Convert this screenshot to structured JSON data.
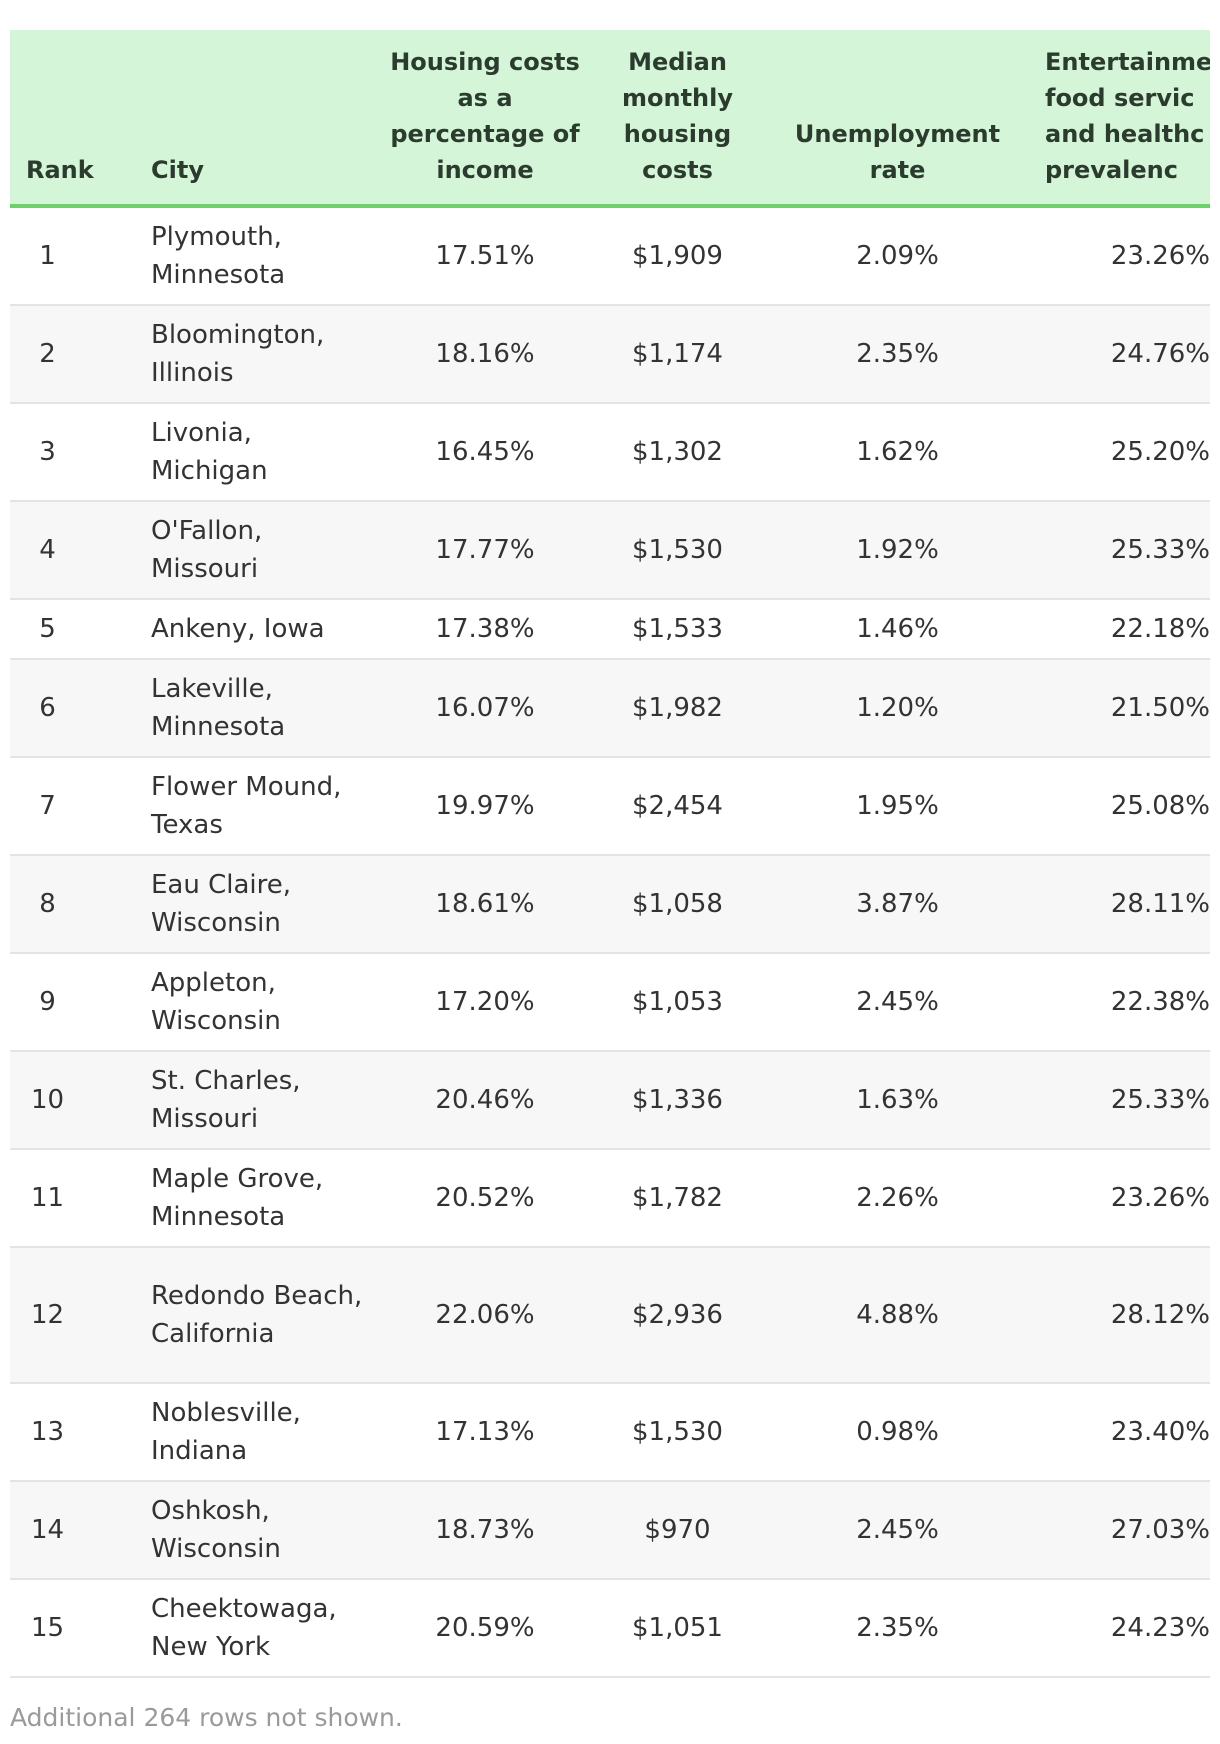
{
  "table": {
    "headers": {
      "rank": "Rank",
      "city": "City",
      "housing_pct": "Housing costs as a percentage of income",
      "median_cost": "Median monthly housing costs",
      "unemployment": "Unemployment rate",
      "entertainment": [
        "Entertainme",
        "food servic",
        "and healthc",
        "prevalenc"
      ]
    },
    "rows": [
      {
        "rank": "1",
        "city": "Plymouth, Minnesota",
        "housing_pct": "17.51%",
        "median_cost": "$1,909",
        "unemployment": "2.09%",
        "entertainment": "23.26%"
      },
      {
        "rank": "2",
        "city": "Bloomington, Illinois",
        "housing_pct": "18.16%",
        "median_cost": "$1,174",
        "unemployment": "2.35%",
        "entertainment": "24.76%"
      },
      {
        "rank": "3",
        "city": "Livonia, Michigan",
        "housing_pct": "16.45%",
        "median_cost": "$1,302",
        "unemployment": "1.62%",
        "entertainment": "25.20%"
      },
      {
        "rank": "4",
        "city": "O'Fallon, Missouri",
        "housing_pct": "17.77%",
        "median_cost": "$1,530",
        "unemployment": "1.92%",
        "entertainment": "25.33%"
      },
      {
        "rank": "5",
        "city": "Ankeny, Iowa",
        "housing_pct": "17.38%",
        "median_cost": "$1,533",
        "unemployment": "1.46%",
        "entertainment": "22.18%"
      },
      {
        "rank": "6",
        "city": "Lakeville, Minnesota",
        "housing_pct": "16.07%",
        "median_cost": "$1,982",
        "unemployment": "1.20%",
        "entertainment": "21.50%"
      },
      {
        "rank": "7",
        "city": "Flower Mound, Texas",
        "housing_pct": "19.97%",
        "median_cost": "$2,454",
        "unemployment": "1.95%",
        "entertainment": "25.08%"
      },
      {
        "rank": "8",
        "city": "Eau Claire, Wisconsin",
        "housing_pct": "18.61%",
        "median_cost": "$1,058",
        "unemployment": "3.87%",
        "entertainment": "28.11%"
      },
      {
        "rank": "9",
        "city": "Appleton, Wisconsin",
        "housing_pct": "17.20%",
        "median_cost": "$1,053",
        "unemployment": "2.45%",
        "entertainment": "22.38%"
      },
      {
        "rank": "10",
        "city": "St. Charles, Missouri",
        "housing_pct": "20.46%",
        "median_cost": "$1,336",
        "unemployment": "1.63%",
        "entertainment": "25.33%"
      },
      {
        "rank": "11",
        "city": "Maple Grove, Minnesota",
        "housing_pct": "20.52%",
        "median_cost": "$1,782",
        "unemployment": "2.26%",
        "entertainment": "23.26%"
      },
      {
        "rank": "12",
        "city": "Redondo Beach, California",
        "housing_pct": "22.06%",
        "median_cost": "$2,936",
        "unemployment": "4.88%",
        "entertainment": "28.12%"
      },
      {
        "rank": "13",
        "city": "Noblesville, Indiana",
        "housing_pct": "17.13%",
        "median_cost": "$1,530",
        "unemployment": "0.98%",
        "entertainment": "23.40%"
      },
      {
        "rank": "14",
        "city": "Oshkosh, Wisconsin",
        "housing_pct": "18.73%",
        "median_cost": "$970",
        "unemployment": "2.45%",
        "entertainment": "27.03%"
      },
      {
        "rank": "15",
        "city": "Cheektowaga, New York",
        "housing_pct": "20.59%",
        "median_cost": "$1,051",
        "unemployment": "2.35%",
        "entertainment": "24.23%"
      }
    ]
  },
  "footer": {
    "note": "Additional 264 rows not shown."
  },
  "colors": {
    "header_bg": "#d5f5d8",
    "header_border": "#6fcf6a",
    "zebra": "#f7f7f7",
    "footer_text": "#9a9a9a"
  }
}
